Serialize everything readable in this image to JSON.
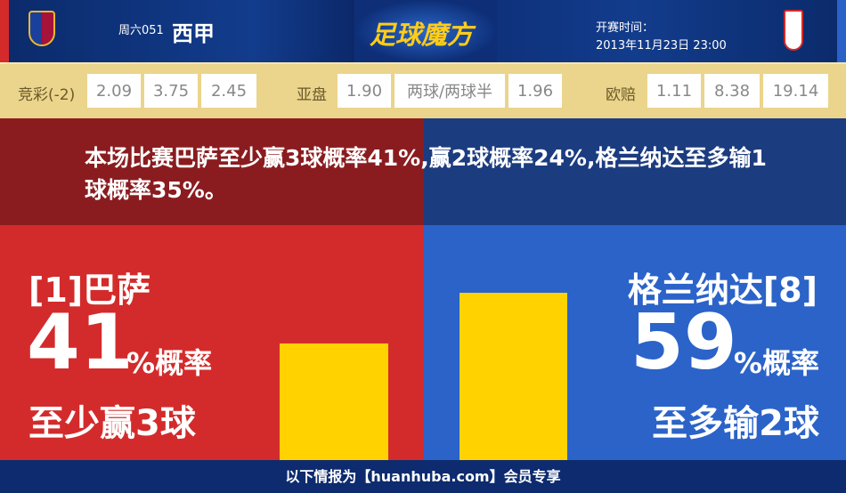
{
  "header": {
    "match_no": "周六051",
    "league": "西甲",
    "logo_text": "足球魔方",
    "time_label": "开赛时间：",
    "time_value": "2013年11月23日 23:00",
    "home_crest": "fc-barcelona-crest",
    "away_crest": "granada-crest"
  },
  "odds": {
    "jingcai_label": "竞彩(-2)",
    "jingcai": [
      "2.09",
      "3.75",
      "2.45"
    ],
    "asian_label": "亚盘",
    "asian": [
      "1.90",
      "两球/两球半",
      "1.96"
    ],
    "euro_label": "欧赔",
    "euro": [
      "1.11",
      "8.38",
      "19.14"
    ]
  },
  "summary": "本场比赛巴萨至少赢3球概率41%,赢2球概率24%,格兰纳达至多输1球概率35%。",
  "home": {
    "name": "[1]巴萨",
    "pct": "41",
    "pct_suffix": "%概率",
    "desc": "至少赢3球",
    "value": 41
  },
  "away": {
    "name": "格兰纳达[8]",
    "pct": "59",
    "pct_suffix": "%概率",
    "desc": "至多输2球",
    "value": 59
  },
  "colors": {
    "home": "#d32b2b",
    "away": "#2b63c9",
    "bar": "#ffd200"
  },
  "footer": "以下情报为【huanhuba.com】会员专享"
}
